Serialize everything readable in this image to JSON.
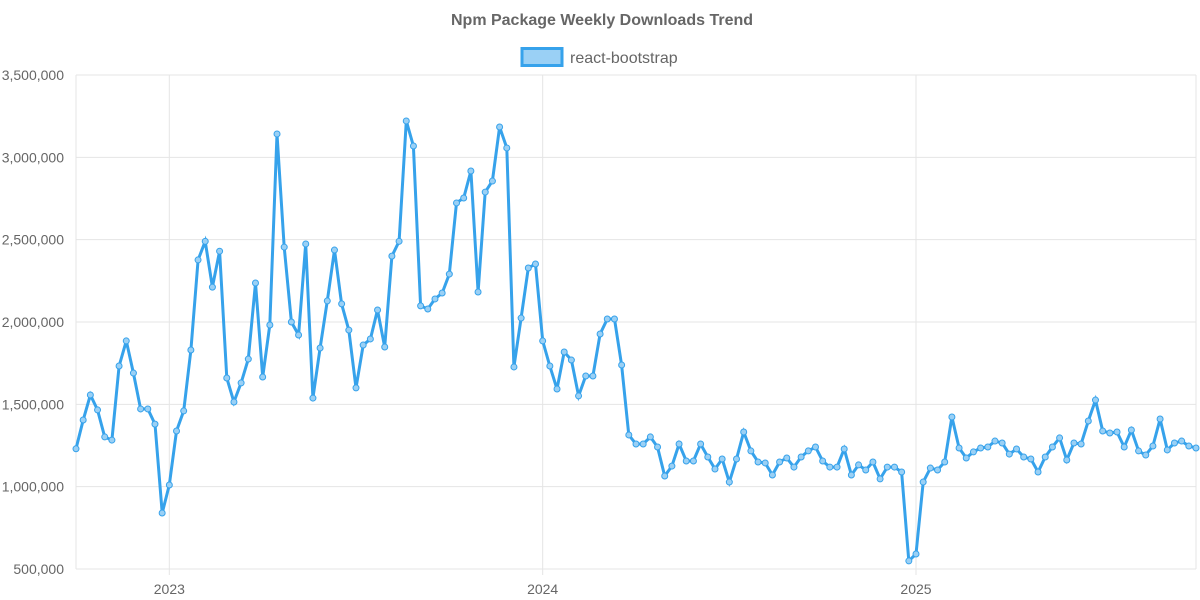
{
  "chart_data": {
    "type": "line",
    "title": "Npm Package Weekly Downloads Trend",
    "xlabel": "",
    "ylabel": "",
    "ylim": [
      500000,
      3500000
    ],
    "y_ticks": [
      "500,000",
      "1,000,000",
      "1,500,000",
      "2,000,000",
      "2,500,000",
      "3,000,000",
      "3,500,000"
    ],
    "y_tick_values": [
      500000,
      1000000,
      1500000,
      2000000,
      2500000,
      3000000,
      3500000
    ],
    "x_start": "2022-10-02",
    "x_interval": "weekly",
    "x_ticks": [
      {
        "label": "2023",
        "week_index": 13
      },
      {
        "label": "2024",
        "week_index": 65
      },
      {
        "label": "2025",
        "week_index": 117
      }
    ],
    "grid": true,
    "legend_position": "top-center",
    "colors": {
      "line": "#36a2eb",
      "fill": "#9ad0f5",
      "grid": "#e5e5e5",
      "text": "#666666"
    },
    "series": [
      {
        "name": "react-bootstrap",
        "values": [
          1230000,
          1405000,
          1557000,
          1466000,
          1302000,
          1283000,
          1733000,
          1885000,
          1690000,
          1472000,
          1472000,
          1380000,
          840000,
          1010000,
          1338000,
          1460000,
          1830000,
          2377000,
          2490000,
          2212000,
          2430000,
          1660000,
          1514000,
          1630000,
          1775000,
          2237000,
          1666000,
          1982000,
          3142000,
          2455000,
          2000000,
          1921000,
          2474000,
          1538000,
          1842000,
          2128000,
          2437000,
          2110000,
          1951000,
          1600000,
          1860000,
          1897000,
          2073000,
          1848000,
          2400000,
          2490000,
          3221000,
          3069000,
          2098000,
          2079000,
          2140000,
          2176000,
          2291000,
          2723000,
          2753000,
          2917000,
          2182000,
          2789000,
          2856000,
          3184000,
          3057000,
          1727000,
          2024000,
          2328000,
          2352000,
          1885000,
          1733000,
          1593000,
          1818000,
          1769000,
          1551000,
          1672000,
          1672000,
          1927000,
          2018000,
          2018000,
          1739000,
          1314000,
          1259000,
          1259000,
          1302000,
          1241000,
          1065000,
          1125000,
          1259000,
          1156000,
          1156000,
          1259000,
          1180000,
          1107000,
          1168000,
          1028000,
          1168000,
          1332000,
          1217000,
          1150000,
          1144000,
          1071000,
          1150000,
          1174000,
          1119000,
          1180000,
          1217000,
          1241000,
          1156000,
          1119000,
          1119000,
          1229000,
          1071000,
          1132000,
          1101000,
          1150000,
          1047000,
          1119000,
          1119000,
          1089000,
          549000,
          591000,
          1028000,
          1113000,
          1101000,
          1150000,
          1423000,
          1235000,
          1174000,
          1211000,
          1235000,
          1241000,
          1277000,
          1265000,
          1198000,
          1229000,
          1180000,
          1168000,
          1089000,
          1180000,
          1241000,
          1296000,
          1162000,
          1265000,
          1259000,
          1399000,
          1526000,
          1338000,
          1326000,
          1332000,
          1241000,
          1344000,
          1217000,
          1192000,
          1247000,
          1411000,
          1223000,
          1265000,
          1277000,
          1247000,
          1235000
        ]
      }
    ]
  }
}
